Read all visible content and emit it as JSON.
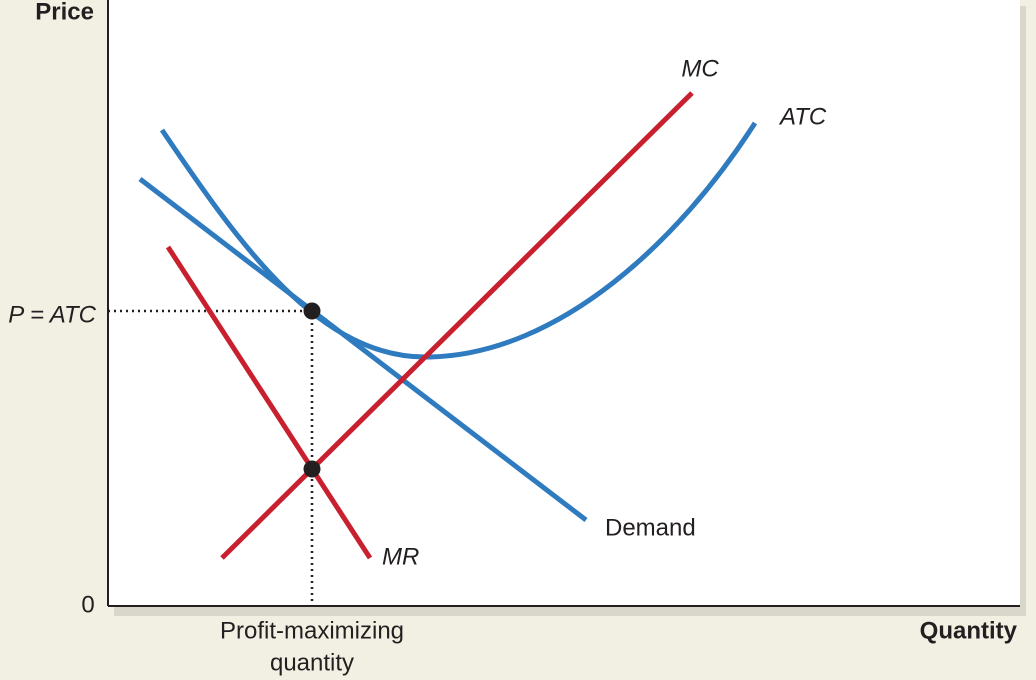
{
  "axes": {
    "y_label": "Price",
    "x_label": "Quantity",
    "origin": "0",
    "price_level": "P = ATC",
    "quantity_level": [
      "Profit-maximizing",
      "quantity"
    ]
  },
  "curves": {
    "mc": "MC",
    "atc": "ATC",
    "demand": "Demand",
    "mr": "MR"
  }
}
